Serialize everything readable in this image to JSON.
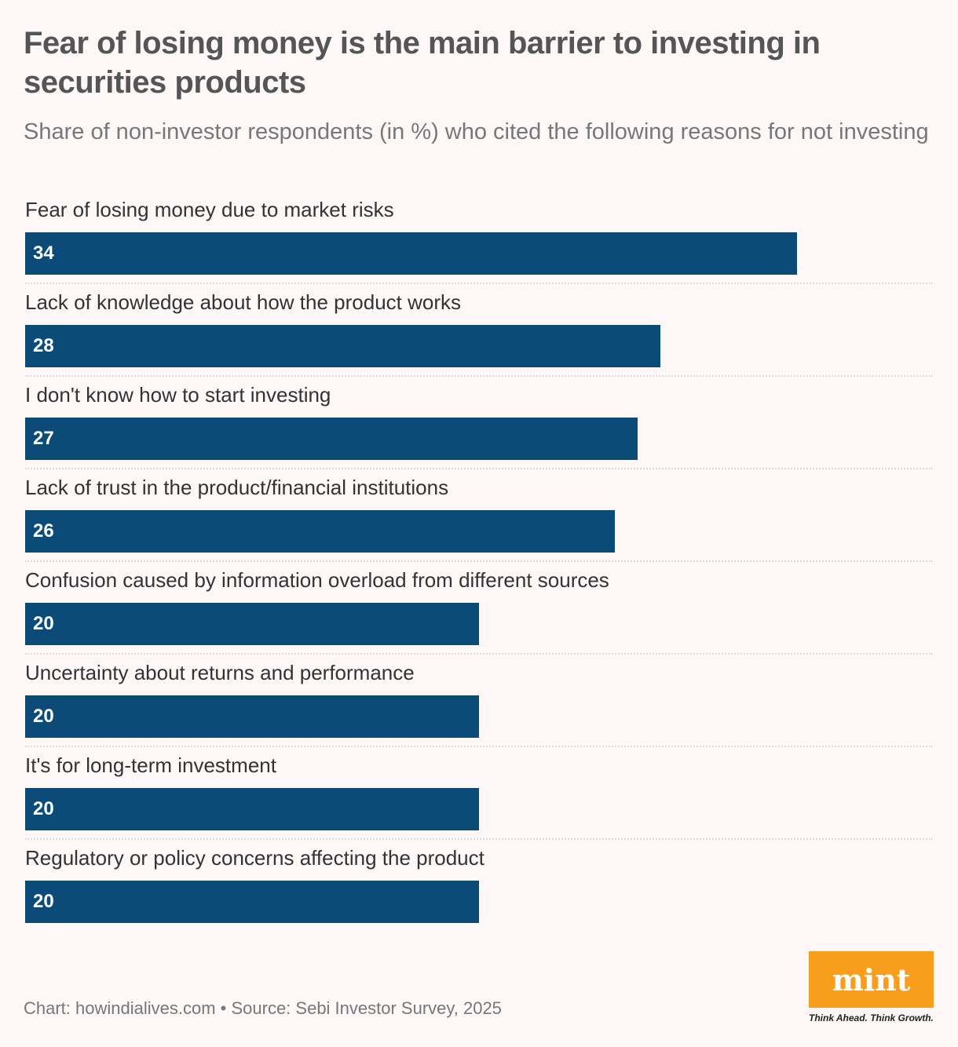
{
  "title": "Fear of losing money is the main barrier to investing in securities products",
  "subtitle": "Share of non-investor respondents (in %) who cited the following reasons for not investing",
  "footer": "Chart: howindialives.com • Source: Sebi Investor Survey, 2025",
  "logo": {
    "text": "mint",
    "tagline": "Think Ahead. Think Growth.",
    "color": "#f99d1c"
  },
  "chart_data": {
    "type": "bar",
    "orientation": "horizontal",
    "categories": [
      "Fear of losing money due to market risks",
      "Lack of knowledge about how the product works",
      "I don't know how to start investing",
      "Lack of trust in the product/financial institutions",
      "Confusion caused by information overload from different sources",
      "Uncertainty about returns and performance",
      "It's for long-term investment",
      "Regulatory or policy concerns affecting the product"
    ],
    "values": [
      34,
      28,
      27,
      26,
      20,
      20,
      20,
      20
    ],
    "xlim": [
      0,
      40
    ],
    "bar_color": "#0c4a78",
    "grid": false
  }
}
